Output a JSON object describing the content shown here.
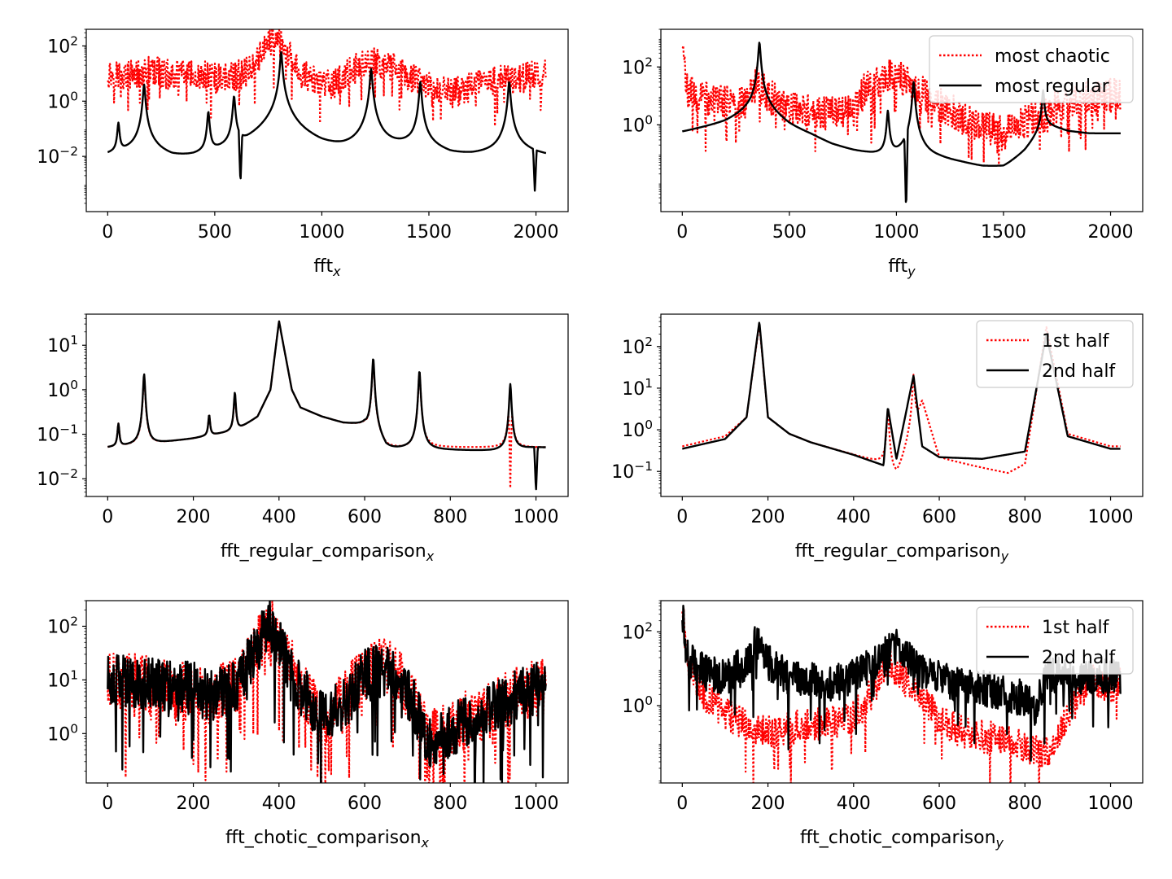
{
  "chart_data": [
    {
      "type": "line",
      "xlabel": "fft",
      "xlabel_sub": "x",
      "yscale": "log",
      "xlim": [
        -100,
        2150
      ],
      "ylim": [
        0.0001,
        400
      ],
      "xticks": [
        0,
        500,
        1000,
        1500,
        2000
      ],
      "xtick_labels": [
        "0",
        "500",
        "1000",
        "1500",
        "2000"
      ],
      "yticks": [
        0.01,
        1,
        100
      ],
      "ytick_labels": [
        "10^-2",
        "10^0",
        "10^2"
      ],
      "legend": null,
      "series": [
        {
          "name": "most chaotic",
          "color": "#ff0000",
          "style": "dotted",
          "x": [
            0,
            100,
            200,
            300,
            400,
            500,
            600,
            650,
            700,
            750,
            780,
            800,
            850,
            900,
            950,
            1000,
            1050,
            1100,
            1150,
            1200,
            1250,
            1300,
            1350,
            1400,
            1450,
            1500,
            1550,
            1600,
            1650,
            1700,
            1750,
            1800,
            1850,
            1900,
            1950,
            2000,
            2047
          ],
          "y": [
            10,
            8,
            12,
            9,
            9,
            7,
            8,
            12,
            40,
            120,
            200,
            130,
            40,
            12,
            6,
            3.5,
            4,
            7,
            14,
            20,
            25,
            20,
            15,
            9,
            5,
            3.5,
            2.5,
            2,
            2.5,
            3.5,
            4.5,
            6,
            6,
            7,
            8,
            9,
            10
          ],
          "noise": 0.55,
          "dips": 0.05
        },
        {
          "name": "most regular",
          "color": "#000000",
          "style": "solid",
          "x": [
            0,
            100,
            200,
            300,
            400,
            500,
            600,
            650,
            700,
            750,
            800,
            850,
            900,
            1000,
            1100,
            1200,
            1300,
            1400,
            1500,
            1600,
            1700,
            1800,
            1900,
            2000,
            2047
          ],
          "y": [
            0.009,
            0.012,
            0.015,
            0.005,
            0.004,
            0.006,
            0.01,
            0.012,
            0.025,
            0.05,
            0.1,
            0.06,
            0.03,
            0.012,
            0.009,
            0.01,
            0.015,
            0.02,
            0.015,
            0.008,
            0.008,
            0.01,
            0.015,
            0.01,
            0.009
          ],
          "peaks": [
            [
              50,
              0.15
            ],
            [
              170,
              4
            ],
            [
              470,
              0.4
            ],
            [
              590,
              1.5
            ],
            [
              810,
              60
            ],
            [
              1230,
              15
            ],
            [
              1460,
              5
            ],
            [
              1875,
              5
            ]
          ],
          "notches": [
            [
              620,
              0.001
            ],
            [
              1995,
              0.0005
            ]
          ]
        }
      ]
    },
    {
      "type": "line",
      "xlabel": "fft",
      "xlabel_sub": "y",
      "yscale": "log",
      "xlim": [
        -100,
        2150
      ],
      "ylim": [
        0.001,
        2000
      ],
      "xticks": [
        0,
        500,
        1000,
        1500,
        2000
      ],
      "xtick_labels": [
        "0",
        "500",
        "1000",
        "1500",
        "2000"
      ],
      "yticks": [
        1,
        100
      ],
      "ytick_labels": [
        "10^0",
        "10^2"
      ],
      "legend": "upper right",
      "series": [
        {
          "name": "most chaotic",
          "color": "#ff0000",
          "style": "dotted",
          "x": [
            0,
            20,
            100,
            200,
            300,
            350,
            400,
            500,
            600,
            700,
            800,
            850,
            900,
            950,
            1000,
            1050,
            1100,
            1200,
            1300,
            1400,
            1500,
            1550,
            1600,
            1700,
            1800,
            1900,
            2000,
            2047
          ],
          "y": [
            800,
            15,
            8,
            6,
            7,
            30,
            10,
            4,
            3,
            2.5,
            2.5,
            15,
            30,
            60,
            50,
            30,
            15,
            5,
            2,
            1,
            0.5,
            0.7,
            1.2,
            3,
            5,
            8,
            10,
            12
          ],
          "noise": 0.6,
          "dips": 0.06
        },
        {
          "name": "most regular",
          "color": "#000000",
          "style": "solid",
          "x": [
            0,
            100,
            200,
            300,
            400,
            500,
            600,
            700,
            800,
            900,
            1000,
            1100,
            1200,
            1300,
            1400,
            1500,
            1600,
            1700,
            1800,
            1900,
            2000,
            2047
          ],
          "y": [
            0.5,
            0.7,
            1.0,
            2.0,
            2.0,
            0.6,
            0.3,
            0.12,
            0.07,
            0.05,
            0.04,
            0.04,
            0.04,
            0.03,
            0.02,
            0.02,
            0.1,
            1,
            0.6,
            0.5,
            0.5,
            0.5
          ],
          "peaks": [
            [
              360,
              700
            ],
            [
              960,
              3
            ],
            [
              1080,
              30
            ],
            [
              1685,
              15
            ]
          ],
          "notches": [
            [
              1045,
              0.001
            ]
          ]
        }
      ]
    },
    {
      "type": "line",
      "xlabel": "fft_regular_comparison",
      "xlabel_sub": "x",
      "yscale": "log",
      "xlim": [
        -50,
        1075
      ],
      "ylim": [
        0.004,
        50
      ],
      "xticks": [
        0,
        200,
        400,
        600,
        800,
        1000
      ],
      "xtick_labels": [
        "0",
        "200",
        "400",
        "600",
        "800",
        "1000"
      ],
      "yticks": [
        0.01,
        0.1,
        1,
        10
      ],
      "ytick_labels": [
        "10^-2",
        "10^-1",
        "10^0",
        "10^1"
      ],
      "legend": null,
      "series": [
        {
          "name": "1st half",
          "color": "#ff0000",
          "style": "dotted",
          "x": [
            0,
            100,
            200,
            300,
            350,
            380,
            400,
            430,
            450,
            500,
            550,
            600,
            650,
            700,
            750,
            800,
            900,
            1000,
            1023
          ],
          "y": [
            0.05,
            0.06,
            0.08,
            0.12,
            0.25,
            1,
            35,
            1,
            0.4,
            0.25,
            0.18,
            0.16,
            0.045,
            0.045,
            0.05,
            0.05,
            0.05,
            0.05,
            0.05
          ],
          "peaks": [
            [
              25,
              0.12
            ],
            [
              85,
              2
            ],
            [
              237,
              0.18
            ],
            [
              297,
              0.7
            ],
            [
              620,
              4.5
            ],
            [
              728,
              2.5
            ],
            [
              940,
              1.3
            ]
          ],
          "notches": [
            [
              940,
              0.006
            ]
          ]
        },
        {
          "name": "2nd half",
          "color": "#000000",
          "style": "solid",
          "x": [
            0,
            100,
            200,
            300,
            350,
            380,
            400,
            430,
            450,
            500,
            550,
            600,
            650,
            700,
            750,
            800,
            900,
            1000,
            1023
          ],
          "y": [
            0.05,
            0.06,
            0.08,
            0.12,
            0.25,
            1,
            35,
            1,
            0.4,
            0.25,
            0.18,
            0.16,
            0.04,
            0.045,
            0.043,
            0.043,
            0.042,
            0.05,
            0.05
          ],
          "peaks": [
            [
              25,
              0.12
            ],
            [
              85,
              2.2
            ],
            [
              237,
              0.18
            ],
            [
              297,
              0.75
            ],
            [
              620,
              5
            ],
            [
              728,
              2.6
            ],
            [
              940,
              1.3
            ]
          ],
          "notches": [
            [
              1000,
              0.005
            ]
          ]
        }
      ]
    },
    {
      "type": "line",
      "xlabel": "fft_regular_comparison",
      "xlabel_sub": "y",
      "yscale": "log",
      "xlim": [
        -50,
        1075
      ],
      "ylim": [
        0.025,
        600
      ],
      "xticks": [
        0,
        200,
        400,
        600,
        800,
        1000
      ],
      "xtick_labels": [
        "0",
        "200",
        "400",
        "600",
        "800",
        "1000"
      ],
      "yticks": [
        0.1,
        1,
        10,
        100
      ],
      "ytick_labels": [
        "10^-1",
        "10^0",
        "10^1",
        "10^2"
      ],
      "legend": "upper right",
      "series": [
        {
          "name": "1st half",
          "color": "#ff0000",
          "style": "dotted",
          "x": [
            0,
            100,
            150,
            180,
            200,
            250,
            300,
            400,
            470,
            500,
            530,
            560,
            600,
            700,
            760,
            800,
            850,
            900,
            1000,
            1023
          ],
          "y": [
            0.4,
            0.7,
            2,
            350,
            2,
            0.8,
            0.5,
            0.25,
            0.15,
            0.03,
            0.5,
            5,
            0.2,
            0.12,
            0.09,
            0.15,
            300,
            0.8,
            0.4,
            0.4
          ],
          "peaks": [
            [
              480,
              3
            ],
            [
              540,
              20
            ]
          ]
        },
        {
          "name": "2nd half",
          "color": "#000000",
          "style": "solid",
          "x": [
            0,
            100,
            150,
            180,
            200,
            250,
            300,
            400,
            470,
            480,
            500,
            540,
            560,
            600,
            700,
            800,
            850,
            900,
            1000,
            1023
          ],
          "y": [
            0.35,
            0.6,
            2,
            400,
            2,
            0.8,
            0.5,
            0.25,
            0.14,
            3.5,
            0.2,
            20,
            0.4,
            0.22,
            0.2,
            0.3,
            200,
            0.7,
            0.35,
            0.35
          ]
        }
      ]
    },
    {
      "type": "line",
      "xlabel": "fft_chotic_comparison",
      "xlabel_sub": "x",
      "yscale": "log",
      "xlim": [
        -50,
        1075
      ],
      "ylim": [
        0.12,
        300
      ],
      "xticks": [
        0,
        200,
        400,
        600,
        800,
        1000
      ],
      "xtick_labels": [
        "0",
        "200",
        "400",
        "600",
        "800",
        "1000"
      ],
      "yticks": [
        1,
        10,
        100
      ],
      "ytick_labels": [
        "10^0",
        "10^1",
        "10^2"
      ],
      "legend": null,
      "series": [
        {
          "name": "1st half",
          "color": "#ff0000",
          "style": "dotted",
          "x": [
            0,
            100,
            200,
            250,
            300,
            350,
            380,
            400,
            450,
            500,
            550,
            600,
            650,
            700,
            750,
            800,
            850,
            900,
            950,
            1000,
            1023
          ],
          "y": [
            10,
            8,
            6,
            5,
            8,
            40,
            120,
            60,
            8,
            2,
            4,
            15,
            18,
            7,
            0.8,
            1.2,
            2,
            3,
            5,
            7,
            8
          ],
          "noise": 0.55,
          "dips": 0.06
        },
        {
          "name": "2nd half",
          "color": "#000000",
          "style": "solid",
          "x": [
            0,
            100,
            200,
            250,
            300,
            350,
            380,
            400,
            450,
            500,
            550,
            600,
            650,
            700,
            750,
            800,
            850,
            900,
            950,
            1000,
            1023
          ],
          "y": [
            10,
            9,
            7,
            5,
            8,
            45,
            110,
            50,
            7,
            2,
            3.5,
            12,
            16,
            6,
            0.7,
            1.1,
            2,
            3,
            5,
            7,
            8
          ],
          "noise": 0.5,
          "dips": 0.05
        }
      ]
    },
    {
      "type": "line",
      "xlabel": "fft_chotic_comparison",
      "xlabel_sub": "y",
      "yscale": "log",
      "xlim": [
        -50,
        1075
      ],
      "ylim": [
        0.008,
        700
      ],
      "xticks": [
        0,
        200,
        400,
        600,
        800,
        1000
      ],
      "xtick_labels": [
        "0",
        "200",
        "400",
        "600",
        "800",
        "1000"
      ],
      "yticks": [
        1,
        100
      ],
      "ytick_labels": [
        "10^0",
        "10^2"
      ],
      "legend": "upper right",
      "series": [
        {
          "name": "1st half",
          "color": "#ff0000",
          "style": "dotted",
          "x": [
            0,
            10,
            50,
            100,
            150,
            200,
            250,
            300,
            350,
            400,
            450,
            480,
            500,
            550,
            600,
            650,
            700,
            750,
            800,
            850,
            900,
            950,
            1000,
            1023
          ],
          "y": [
            500,
            20,
            2,
            0.6,
            0.3,
            0.2,
            0.25,
            0.3,
            0.35,
            0.5,
            3,
            20,
            8,
            2,
            0.5,
            0.2,
            0.15,
            0.12,
            0.08,
            0.05,
            0.5,
            5,
            3,
            5
          ],
          "noise": 0.45,
          "dips": 0.04
        },
        {
          "name": "2nd half",
          "color": "#000000",
          "style": "solid",
          "x": [
            0,
            10,
            50,
            100,
            150,
            175,
            200,
            250,
            300,
            350,
            400,
            450,
            500,
            550,
            600,
            700,
            800,
            830,
            850,
            900,
            950,
            1000,
            1023
          ],
          "y": [
            300,
            20,
            8,
            6,
            15,
            60,
            15,
            6,
            5,
            4,
            6,
            15,
            40,
            10,
            5,
            3,
            1.5,
            1,
            8,
            6,
            5,
            6,
            6
          ],
          "noise": 0.5,
          "dips": 0.05
        }
      ]
    }
  ]
}
